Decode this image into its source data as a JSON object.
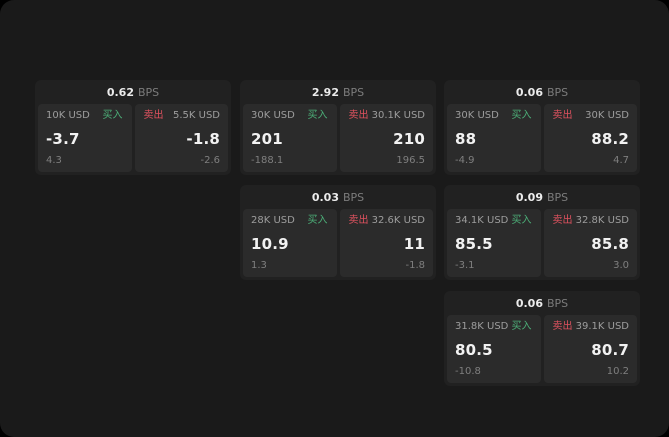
{
  "labels": {
    "buy": "买入",
    "sell": "卖出",
    "unit": "BPS"
  },
  "colors": {
    "background": "#1a1a1a",
    "card": "#212121",
    "panel": "#2b2b2b",
    "buy_accent": "#4caf78",
    "sell_accent": "#e0525f"
  },
  "cards": [
    {
      "spread": "0.62",
      "buy": {
        "size": "10K USD",
        "price": "-3.7",
        "sub": "4.3"
      },
      "sell": {
        "size": "5.5K USD",
        "price": "-1.8",
        "sub": "-2.6"
      }
    },
    {
      "spread": "2.92",
      "buy": {
        "size": "30K USD",
        "price": "201",
        "sub": "-188.1"
      },
      "sell": {
        "size": "30.1K USD",
        "price": "210",
        "sub": "196.5"
      }
    },
    {
      "spread": "0.06",
      "buy": {
        "size": "30K USD",
        "price": "88",
        "sub": "-4.9"
      },
      "sell": {
        "size": "30K USD",
        "price": "88.2",
        "sub": "4.7"
      }
    },
    {
      "spread": "0.03",
      "buy": {
        "size": "28K USD",
        "price": "10.9",
        "sub": "1.3"
      },
      "sell": {
        "size": "32.6K USD",
        "price": "11",
        "sub": "-1.8"
      }
    },
    {
      "spread": "0.09",
      "buy": {
        "size": "34.1K USD",
        "price": "85.5",
        "sub": "-3.1"
      },
      "sell": {
        "size": "32.8K USD",
        "price": "85.8",
        "sub": "3.0"
      }
    },
    {
      "spread": "0.06",
      "buy": {
        "size": "31.8K USD",
        "price": "80.5",
        "sub": "-10.8"
      },
      "sell": {
        "size": "39.1K USD",
        "price": "80.7",
        "sub": "10.2"
      }
    }
  ]
}
